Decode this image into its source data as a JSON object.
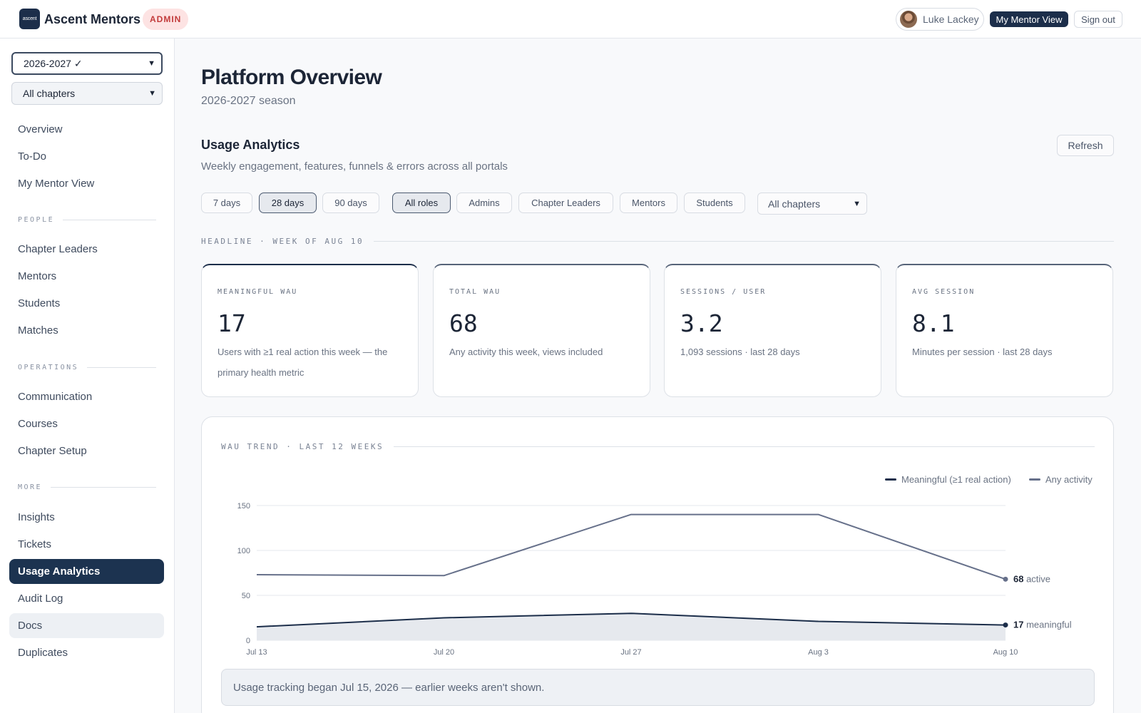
{
  "app": {
    "logo_text": "ascent",
    "name": "Ascent Mentors",
    "badge": "ADMIN"
  },
  "user": {
    "name": "Luke Lackey",
    "my_mentor_view": "My Mentor View",
    "sign_out": "Sign out"
  },
  "sidebar": {
    "season_select": "2026-2027 ✓",
    "chapter_select": "All chapters",
    "top_items": [
      "Overview",
      "To-Do",
      "My Mentor View"
    ],
    "sections": [
      {
        "label": "PEOPLE",
        "items": [
          "Chapter Leaders",
          "Mentors",
          "Students",
          "Matches"
        ]
      },
      {
        "label": "OPERATIONS",
        "items": [
          "Communication",
          "Courses",
          "Chapter Setup"
        ]
      },
      {
        "label": "MORE",
        "items": [
          "Insights",
          "Tickets",
          "Usage Analytics",
          "Audit Log",
          "Docs",
          "Duplicates"
        ]
      }
    ],
    "active_item": "Usage Analytics"
  },
  "page": {
    "title": "Platform Overview",
    "subtitle": "2026-2027 season"
  },
  "usage": {
    "title": "Usage Analytics",
    "subtitle": "Weekly engagement, features, funnels & errors across all portals",
    "refresh": "Refresh",
    "range_filters": [
      "7 days",
      "28 days",
      "90 days"
    ],
    "range_selected": "28 days",
    "role_filters": [
      "All roles",
      "Admins",
      "Chapter Leaders",
      "Mentors",
      "Students"
    ],
    "role_selected": "All roles",
    "chapter_select": "All chapters",
    "headline_label": "HEADLINE · WEEK OF AUG 10",
    "kpis": [
      {
        "label": "MEANINGFUL WAU",
        "value": "17",
        "desc": "Users with ≥1 real action this week — the primary health metric"
      },
      {
        "label": "TOTAL WAU",
        "value": "68",
        "desc": "Any activity this week, views included"
      },
      {
        "label": "SESSIONS / USER",
        "value": "3.2",
        "desc": "1,093 sessions · last 28 days"
      },
      {
        "label": "AVG SESSION",
        "value": "8.1",
        "desc": "Minutes per session · last 28 days"
      }
    ],
    "note": "Usage tracking began Jul 15, 2026 — earlier weeks aren't shown."
  },
  "chart_data": {
    "type": "line",
    "title": "WAU TREND · LAST 12 WEEKS",
    "x": [
      "Jul 13",
      "Jul 20",
      "Jul 27",
      "Aug 3",
      "Aug 10"
    ],
    "ylim": [
      0,
      150
    ],
    "yticks": [
      0,
      50,
      100,
      150
    ],
    "grid": true,
    "legend_position": "top-right",
    "series": [
      {
        "name": "Meaningful (≥1 real action)",
        "values": [
          15,
          25,
          30,
          21,
          17
        ],
        "color": "#1c2e4a",
        "end_label": "meaningful",
        "filled": true
      },
      {
        "name": "Any activity",
        "values": [
          73,
          72,
          140,
          140,
          68
        ],
        "color": "#66708a",
        "end_label": "active",
        "filled": false
      }
    ]
  },
  "colors": {
    "primary": "#1c2e4a",
    "accent_red": "#c23b3b",
    "muted": "#6a7383"
  },
  "icons": {
    "logo": "ascent-logo-icon",
    "avatar": "user-avatar-icon",
    "dropdown": "chevron-down-icon"
  }
}
